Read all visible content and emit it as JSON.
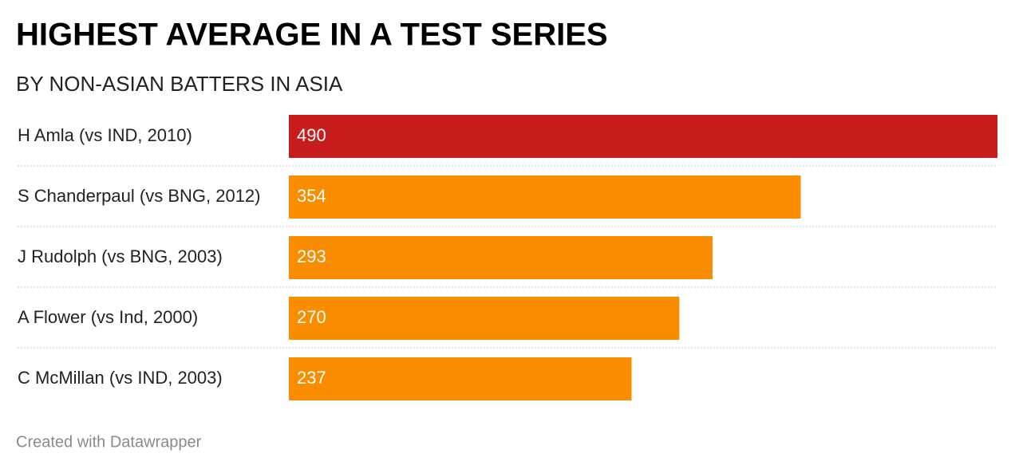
{
  "chart_data": {
    "type": "bar",
    "orientation": "horizontal",
    "title": "HIGHEST AVERAGE IN A TEST SERIES",
    "subtitle": "BY NON-ASIAN BATTERS IN ASIA",
    "categories": [
      "H Amla (vs IND, 2010)",
      "S Chanderpaul (vs BNG, 2012)",
      "J Rudolph (vs BNG, 2003)",
      "A Flower (vs Ind, 2000)",
      "C McMillan (vs IND, 2003)"
    ],
    "values": [
      490,
      354,
      293,
      270,
      237
    ],
    "colors": [
      "#c71e1d",
      "#fa8c00",
      "#fa8c00",
      "#fa8c00",
      "#fa8c00"
    ],
    "footer": "Created with Datawrapper"
  }
}
